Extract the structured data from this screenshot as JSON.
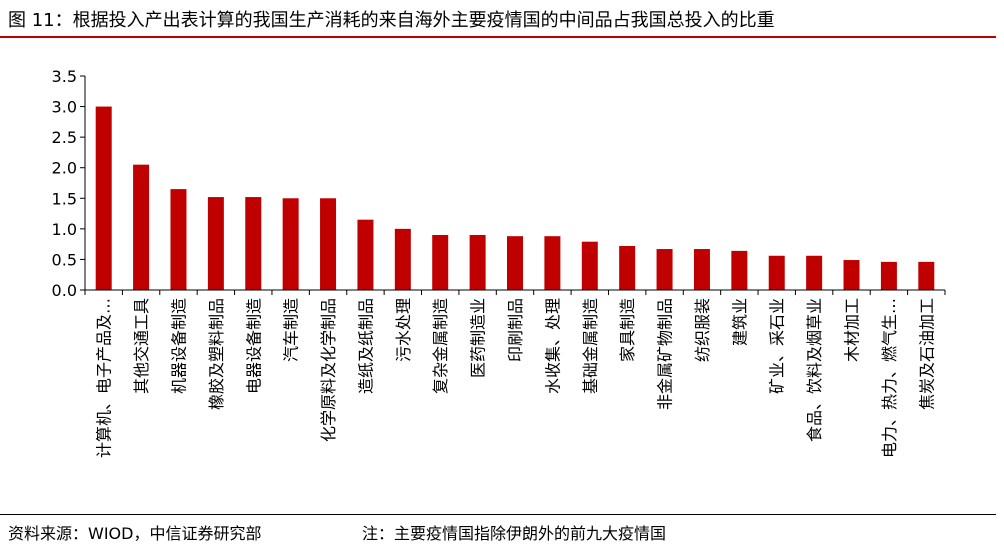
{
  "header": {
    "title": "图 11：根据投入产出表计算的我国生产消耗的来自海外主要疫情国的中间品占我国总投入的比重"
  },
  "footer": {
    "source": "资料来源：WIOD，中信证券研究部",
    "note": "注：主要疫情国指除伊朗外的前九大疫情国"
  },
  "colors": {
    "bar": "#c00000",
    "title_rule": "#c00000"
  },
  "chart_data": {
    "type": "bar",
    "title": "",
    "xlabel": "",
    "ylabel": "",
    "ylim": [
      0,
      3.5
    ],
    "yticks": [
      "0.0",
      "0.5",
      "1.0",
      "1.5",
      "2.0",
      "2.5",
      "3.0",
      "3.5"
    ],
    "grid": false,
    "legend": "none",
    "categories": [
      "计算机、电子产品及…",
      "其他交通工具",
      "机器设备制造",
      "橡胶及塑料制品",
      "电器设备制造",
      "汽车制造",
      "化学原料及化学制品",
      "造纸及纸制品",
      "污水处理",
      "复杂金属制造",
      "医药制造业",
      "印刷制品",
      "水收集、处理",
      "基础金属制造",
      "家具制造",
      "非金属矿物制品",
      "纺织服装",
      "建筑业",
      "矿业、采石业",
      "食品、饮料及烟草业",
      "木材加工",
      "电力、热力、燃气生…",
      "焦炭及石油加工"
    ],
    "values": [
      3.0,
      2.05,
      1.65,
      1.52,
      1.52,
      1.5,
      1.5,
      1.15,
      1.0,
      0.9,
      0.9,
      0.88,
      0.88,
      0.79,
      0.72,
      0.67,
      0.67,
      0.64,
      0.56,
      0.56,
      0.49,
      0.46,
      0.46
    ]
  }
}
